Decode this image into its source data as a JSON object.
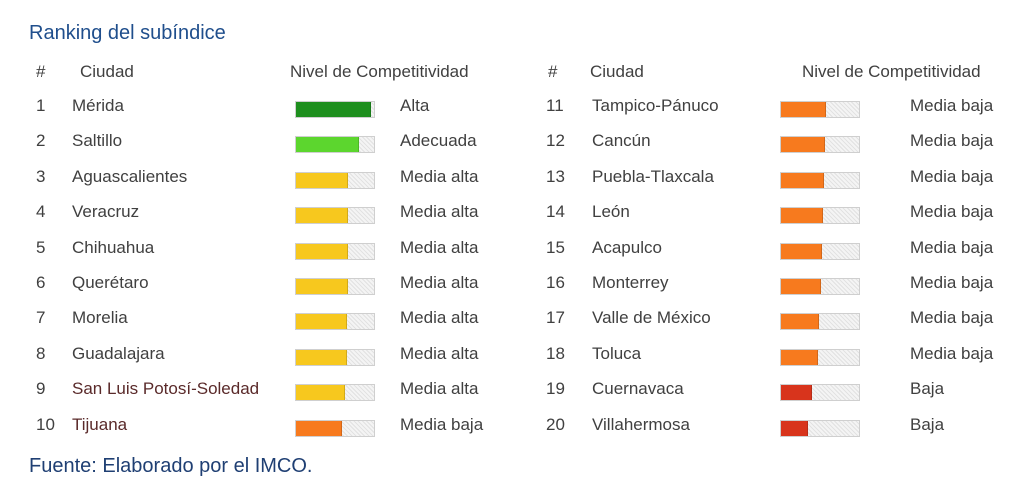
{
  "title": "Ranking del subíndice",
  "source": "Fuente: Elaborado por el IMCO.",
  "headers": {
    "num": "#",
    "city": "Ciudad",
    "level": "Nivel de Competitividad"
  },
  "colors": {
    "Alta": "#1e8f1e",
    "Adecuada": "#5cd62e",
    "Media alta": "#f7c81e",
    "Media baja": "#f77a1e",
    "Baja": "#d8341c"
  },
  "chart_data": {
    "type": "bar",
    "title": "Ranking del subíndice",
    "value_range": [
      0,
      1
    ],
    "rows": [
      {
        "rank": "1",
        "city": "Mérida",
        "level": "Alta",
        "value": 0.95
      },
      {
        "rank": "2",
        "city": "Saltillo",
        "level": "Adecuada",
        "value": 0.8
      },
      {
        "rank": "3",
        "city": "Aguascalientes",
        "level": "Media alta",
        "value": 0.65
      },
      {
        "rank": "4",
        "city": "Veracruz",
        "level": "Media alta",
        "value": 0.65
      },
      {
        "rank": "5",
        "city": "Chihuahua",
        "level": "Media alta",
        "value": 0.65
      },
      {
        "rank": "6",
        "city": "Querétaro",
        "level": "Media alta",
        "value": 0.65
      },
      {
        "rank": "7",
        "city": "Morelia",
        "level": "Media alta",
        "value": 0.64
      },
      {
        "rank": "8",
        "city": "Guadalajara",
        "level": "Media alta",
        "value": 0.64
      },
      {
        "rank": "9",
        "city": "San Luis Potosí-Soledad",
        "level": "Media alta",
        "value": 0.62
      },
      {
        "rank": "10",
        "city": "Tijuana",
        "level": "Media baja",
        "value": 0.58
      },
      {
        "rank": "11",
        "city": "Tampico-Pánuco",
        "level": "Media baja",
        "value": 0.57
      },
      {
        "rank": "12",
        "city": "Cancún",
        "level": "Media baja",
        "value": 0.55
      },
      {
        "rank": "13",
        "city": "Puebla-Tlaxcala",
        "level": "Media baja",
        "value": 0.54
      },
      {
        "rank": "14",
        "city": "León",
        "level": "Media baja",
        "value": 0.52
      },
      {
        "rank": "15",
        "city": "Acapulco",
        "level": "Media baja",
        "value": 0.51
      },
      {
        "rank": "16",
        "city": "Monterrey",
        "level": "Media baja",
        "value": 0.5
      },
      {
        "rank": "17",
        "city": "Valle de México",
        "level": "Media baja",
        "value": 0.48
      },
      {
        "rank": "18",
        "city": "Toluca",
        "level": "Media baja",
        "value": 0.46
      },
      {
        "rank": "19",
        "city": "Cuernavaca",
        "level": "Baja",
        "value": 0.38
      },
      {
        "rank": "20",
        "city": "Villahermosa",
        "level": "Baja",
        "value": 0.33
      }
    ]
  }
}
